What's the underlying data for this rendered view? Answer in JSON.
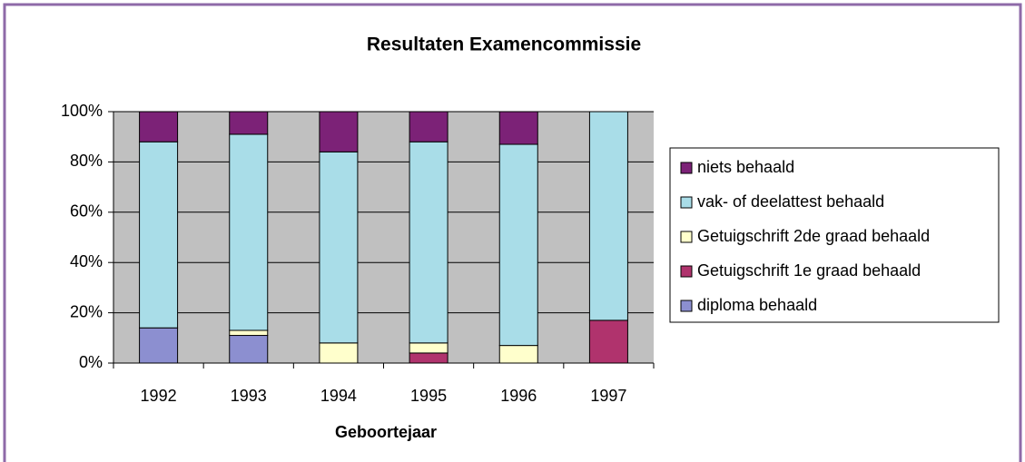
{
  "chart_data": {
    "type": "stacked_bar",
    "title": "Resultaten Examencommissie",
    "x_label": "Geboortejaar",
    "categories": [
      "1992",
      "1993",
      "1994",
      "1995",
      "1996",
      "1997"
    ],
    "series": [
      {
        "name": "diploma behaald",
        "color": "#8c8fd0",
        "values": [
          14,
          11,
          0,
          0,
          0,
          0
        ]
      },
      {
        "name": "Getuigschrift 1e graad behaald",
        "color": "#b0336d",
        "values": [
          0,
          0,
          0,
          4,
          0,
          17
        ]
      },
      {
        "name": "Getuigschrift 2de graad behaald",
        "color": "#ffffcc",
        "values": [
          0,
          2,
          8,
          4,
          7,
          0
        ]
      },
      {
        "name": "vak- of deelattest behaald",
        "color": "#a9dde8",
        "values": [
          74,
          78,
          76,
          80,
          80,
          83
        ]
      },
      {
        "name": "niets behaald",
        "color": "#7c2277",
        "values": [
          12,
          9,
          16,
          12,
          13,
          0
        ]
      }
    ],
    "ylim": [
      0,
      100
    ],
    "yticks": [
      {
        "value": 0,
        "label": "0%"
      },
      {
        "value": 20,
        "label": "20%"
      },
      {
        "value": 40,
        "label": "40%"
      },
      {
        "value": 60,
        "label": "60%"
      },
      {
        "value": 80,
        "label": "80%"
      },
      {
        "value": 100,
        "label": "100%"
      }
    ],
    "grid": true,
    "legend": "right"
  }
}
